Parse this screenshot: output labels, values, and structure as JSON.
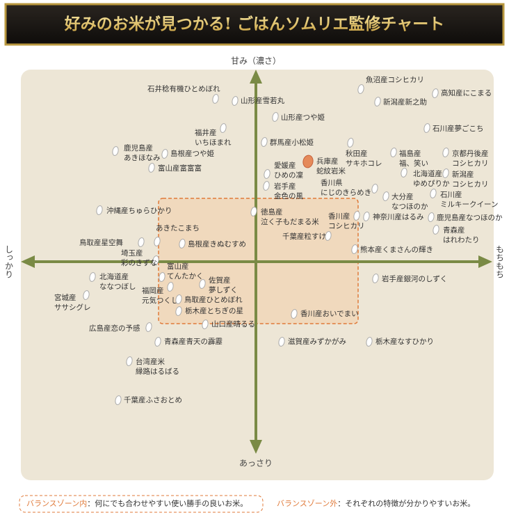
{
  "header": {
    "title": "好みのお米が見つかる! ごはんソムリエ監修チャート"
  },
  "axes": {
    "top": "甘み（濃さ）",
    "bottom": "あっさり",
    "left": "しっかり",
    "right": "もちもち"
  },
  "items": [
    {
      "lines": [
        "石井稔有機ひとめぼれ"
      ]
    },
    {
      "lines": [
        "山形産雪若丸"
      ]
    },
    {
      "lines": [
        "魚沼産コシヒカリ"
      ]
    },
    {
      "lines": [
        "高知産にこまる"
      ]
    },
    {
      "lines": [
        "新潟産新之助"
      ]
    },
    {
      "lines": [
        "山形産つや姫"
      ]
    },
    {
      "lines": [
        "石川産夢ごこち"
      ]
    },
    {
      "lines": [
        "福井産",
        "いちほまれ"
      ]
    },
    {
      "lines": [
        "群馬産小松姫"
      ]
    },
    {
      "lines": [
        "鹿児島産",
        "あきほなみ"
      ]
    },
    {
      "lines": [
        "島根産つや姫"
      ]
    },
    {
      "lines": [
        "秋田産",
        "サキホコレ"
      ]
    },
    {
      "lines": [
        "福島産",
        "福、笑い"
      ]
    },
    {
      "lines": [
        "京都丹後産",
        "コシヒカリ"
      ]
    },
    {
      "lines": [
        "兵庫産",
        "蛇紋岩米"
      ]
    },
    {
      "lines": [
        "愛媛産",
        "ひめの凜"
      ]
    },
    {
      "lines": [
        "富山産富富富"
      ]
    },
    {
      "lines": [
        "北海道産",
        "ゆめぴりか"
      ]
    },
    {
      "lines": [
        "新潟産",
        "コシヒカリ"
      ]
    },
    {
      "lines": [
        "岩手産",
        "金色の風"
      ]
    },
    {
      "lines": [
        "香川県",
        "にじのきらめき"
      ]
    },
    {
      "lines": [
        "石川産",
        "ミルキークイーン"
      ]
    },
    {
      "lines": [
        "大分産",
        "なつほのか"
      ]
    },
    {
      "lines": [
        "沖縄産ちゅらひかり"
      ]
    },
    {
      "lines": [
        "徳島産",
        "泣く子もだまる米"
      ]
    },
    {
      "lines": [
        "香川産",
        "コシヒカリ"
      ]
    },
    {
      "lines": [
        "神奈川産はるみ"
      ]
    },
    {
      "lines": [
        "鹿児島産なつほのか"
      ]
    },
    {
      "lines": [
        "あきたこまち"
      ]
    },
    {
      "lines": [
        "青森産",
        "はれわたり"
      ]
    },
    {
      "lines": [
        "千葉産粒すけ"
      ]
    },
    {
      "lines": [
        "鳥取産星空舞"
      ]
    },
    {
      "lines": [
        "島根産きぬむすめ"
      ]
    },
    {
      "lines": [
        "熊本産くまさんの輝き"
      ]
    },
    {
      "lines": [
        "埼玉産",
        "彩のきずな"
      ]
    },
    {
      "lines": [
        "富山産",
        "てんたかく"
      ]
    },
    {
      "lines": [
        "北海道産",
        "ななつぼし"
      ]
    },
    {
      "lines": [
        "佐賀産",
        "夢しずく"
      ]
    },
    {
      "lines": [
        "岩手産銀河のしずく"
      ]
    },
    {
      "lines": [
        "福岡産",
        "元気つくし"
      ]
    },
    {
      "lines": [
        "宮城産",
        "ササシグレ"
      ]
    },
    {
      "lines": [
        "鳥取産ひとめぼれ"
      ]
    },
    {
      "lines": [
        "栃木産とちぎの星"
      ]
    },
    {
      "lines": [
        "香川産おいでまい"
      ]
    },
    {
      "lines": [
        "山口産晴るる"
      ]
    },
    {
      "lines": [
        "広島産恋の予感"
      ]
    },
    {
      "lines": [
        "青森産青天の霹靂"
      ]
    },
    {
      "lines": [
        "滋賀産みずかがみ"
      ]
    },
    {
      "lines": [
        "栃木産なすひかり"
      ]
    },
    {
      "lines": [
        "台湾産米",
        "縁路はるばる"
      ]
    },
    {
      "lines": [
        "千葉産ふさおとめ"
      ]
    }
  ],
  "legend": {
    "inside": {
      "label": "バランスゾーン内",
      "text": "：何にでも合わせやすい使い勝手の良いお米。"
    },
    "outside": {
      "label": "バランスゾーン外",
      "text": "：それぞれの特徴が分かりやすいお米。"
    }
  }
}
